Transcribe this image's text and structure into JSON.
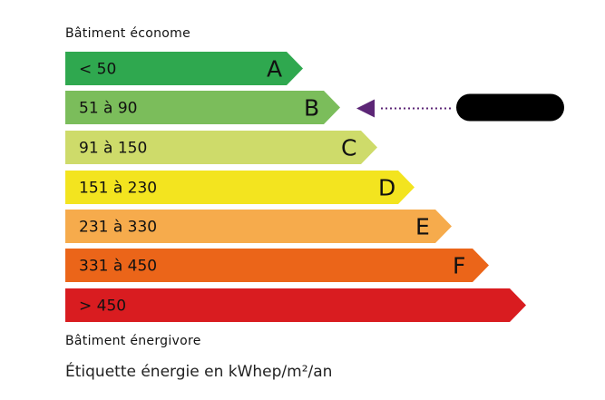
{
  "top_label": "Bâtiment économe",
  "bottom_label": "Bâtiment énergivore",
  "unit_label": "Étiquette énergie en kWhep/m²/an",
  "classes": [
    {
      "range": "< 50",
      "letter": "A",
      "color": "#2fa84f"
    },
    {
      "range": "51 à 90",
      "letter": "B",
      "color": "#7bbd5b"
    },
    {
      "range": "91 à 150",
      "letter": "C",
      "color": "#cedb6a"
    },
    {
      "range": "151 à 230",
      "letter": "D",
      "color": "#f3e41f"
    },
    {
      "range": "231 à 330",
      "letter": "E",
      "color": "#f6ab4c"
    },
    {
      "range": "331 à 450",
      "letter": "F",
      "color": "#eb6519"
    },
    {
      "range": "> 450",
      "letter": "",
      "color": "#d91c20"
    }
  ],
  "indicator": {
    "class": "B",
    "color": "#5c2676",
    "label_redacted": true
  }
}
